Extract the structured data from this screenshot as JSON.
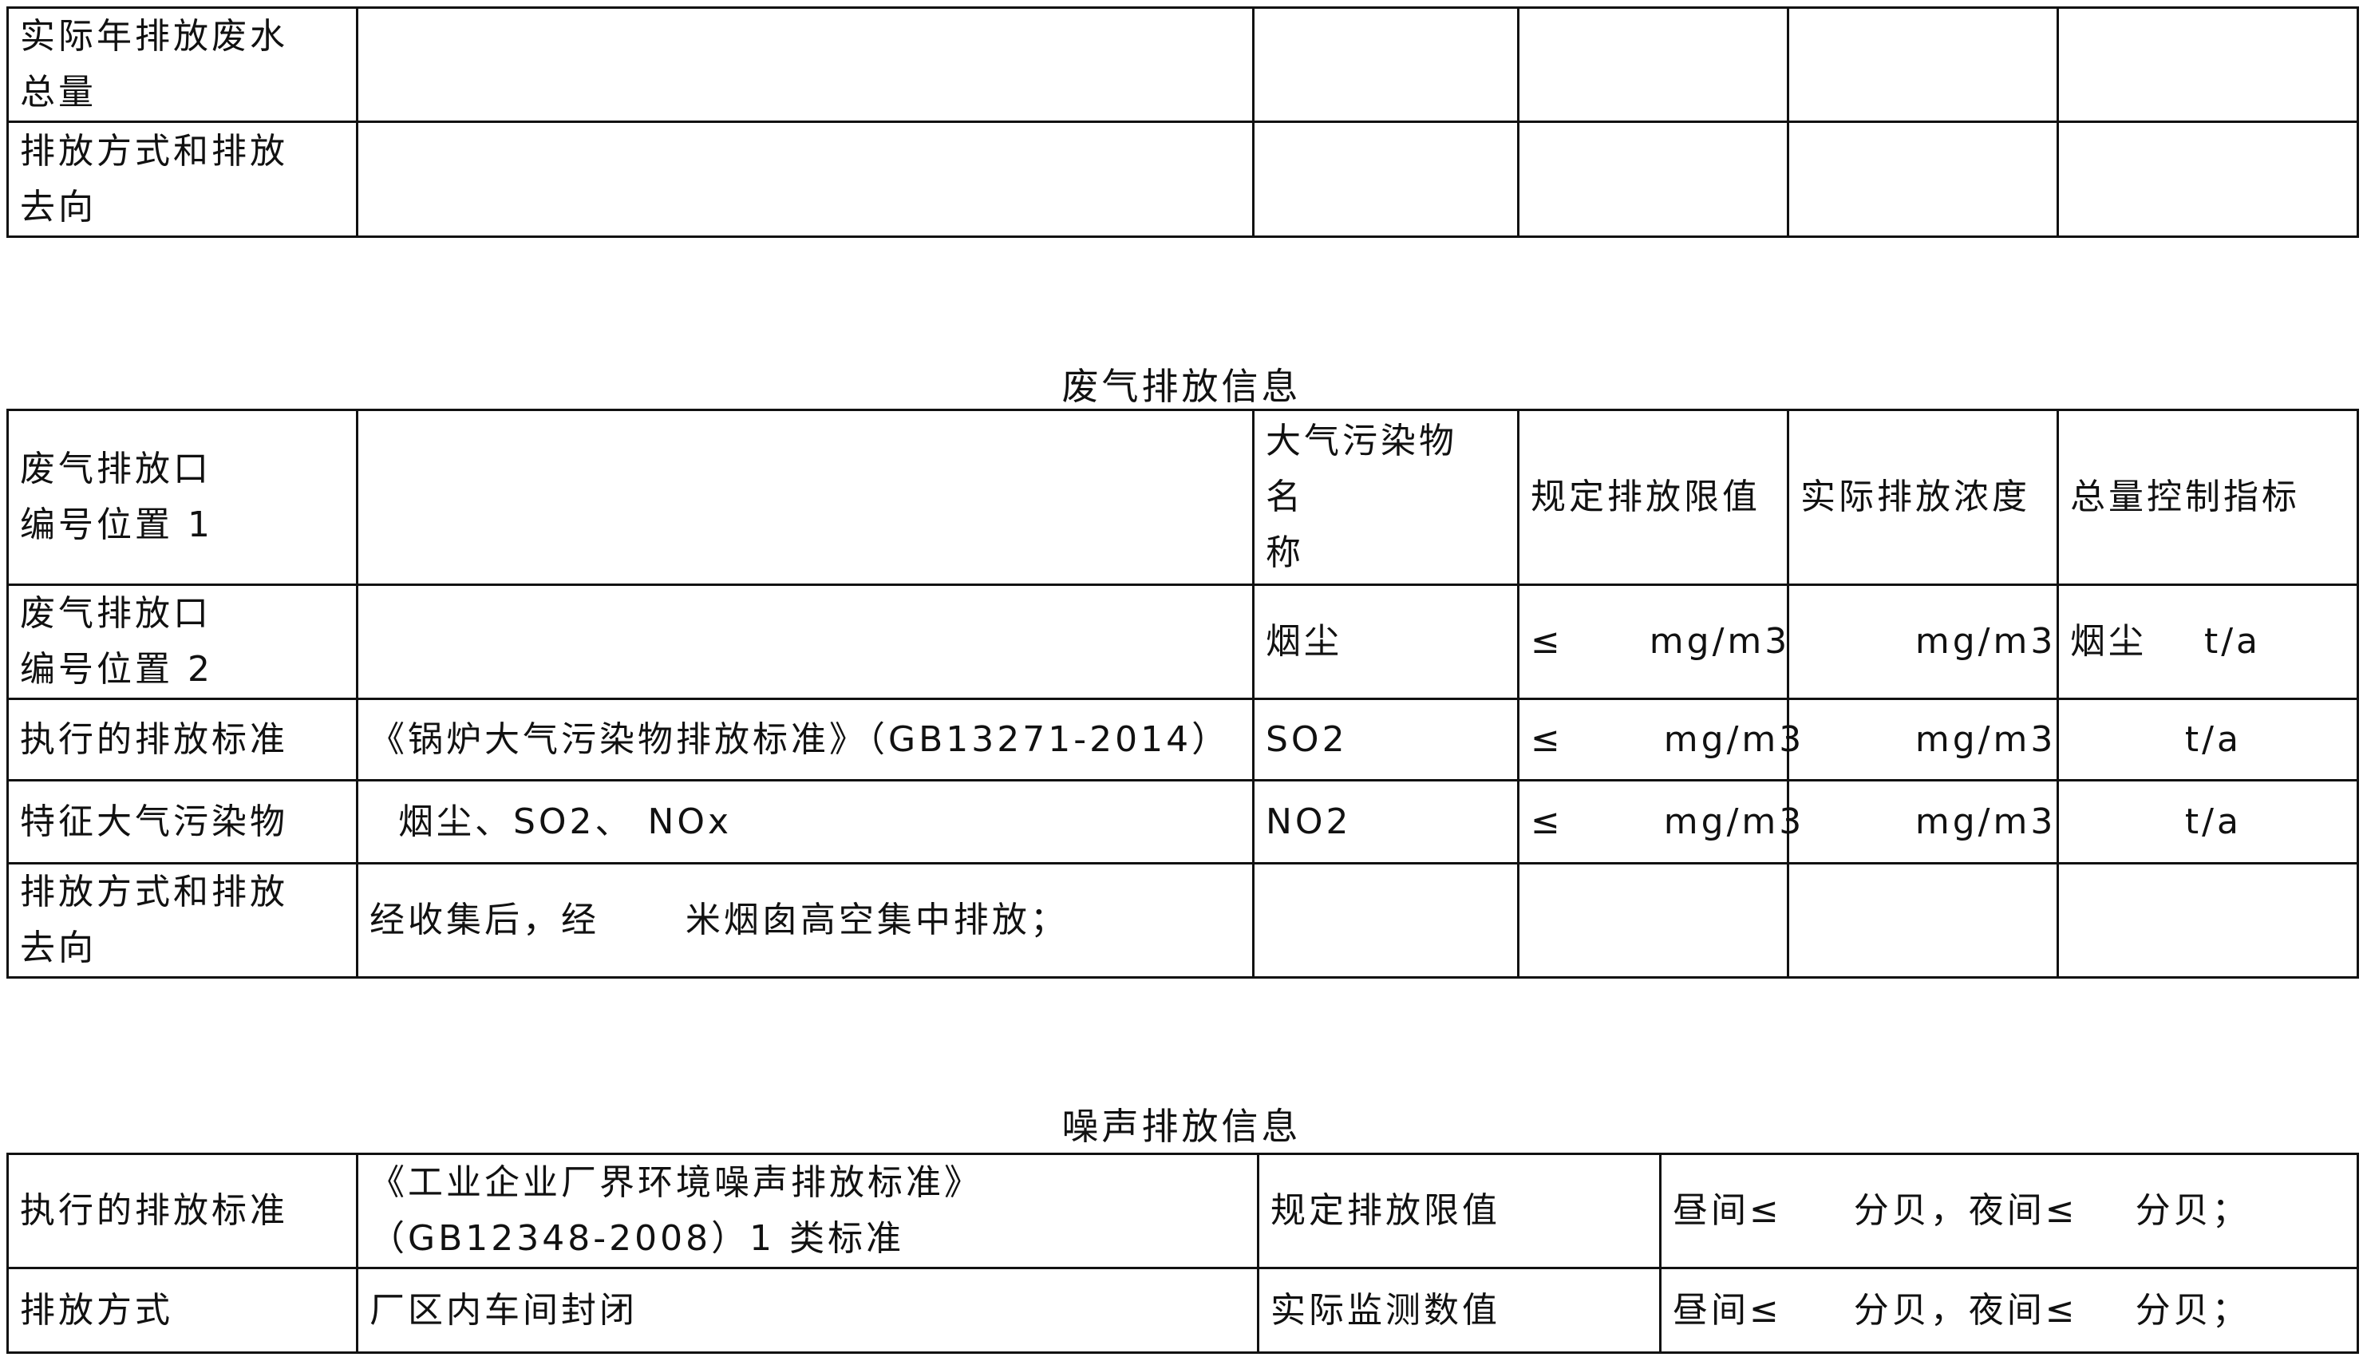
{
  "water_table": {
    "rows": [
      {
        "label": "实际年排放废水\n总量"
      },
      {
        "label": "排放方式和排放\n去向"
      }
    ]
  },
  "gas_section": {
    "title": "废气排放信息",
    "rows": [
      {
        "label": "废气排放口\n编号位置 1",
        "value": "",
        "pollutant": "大气污染物\n名\n 称",
        "limit": "规定排放限值",
        "actual": "实际排放浓度",
        "total": "总量控制指标"
      },
      {
        "label": "废气排放口\n编号位置 2",
        "value": "",
        "pollutant": "烟尘",
        "limit": "≤      mg/m3",
        "actual": "        mg/m3",
        "total": "烟尘    t/a"
      },
      {
        "label": "执行的排放标准",
        "value": "《锅炉大气污染物排放标准》（GB13271-2014）",
        "pollutant": "SO2",
        "limit": "≤       mg/m3",
        "actual": "        mg/m3",
        "total": "        t/a"
      },
      {
        "label": "特征大气污染物",
        "value": "  烟尘、SO2、 NOx",
        "pollutant": "NO2",
        "limit": "≤       mg/m3",
        "actual": "        mg/m3",
        "total": "        t/a"
      },
      {
        "label": "排放方式和排放\n去向",
        "value": "经收集后，经      米烟囱高空集中排放；",
        "pollutant": "",
        "limit": "",
        "actual": "",
        "total": ""
      }
    ]
  },
  "noise_section": {
    "title": "噪声排放信息",
    "rows": [
      {
        "label": "执行的排放标准",
        "value": "《工业企业厂界环境噪声排放标准》\n（GB12348-2008）1 类标准",
        "item": "规定排放限值",
        "result": "昼间≤     分贝，夜间≤    分贝；"
      },
      {
        "label": "排放方式",
        "value": "厂区内车间封闭",
        "item": "实际监测数值",
        "result": "昼间≤     分贝，夜间≤    分贝；"
      }
    ]
  }
}
